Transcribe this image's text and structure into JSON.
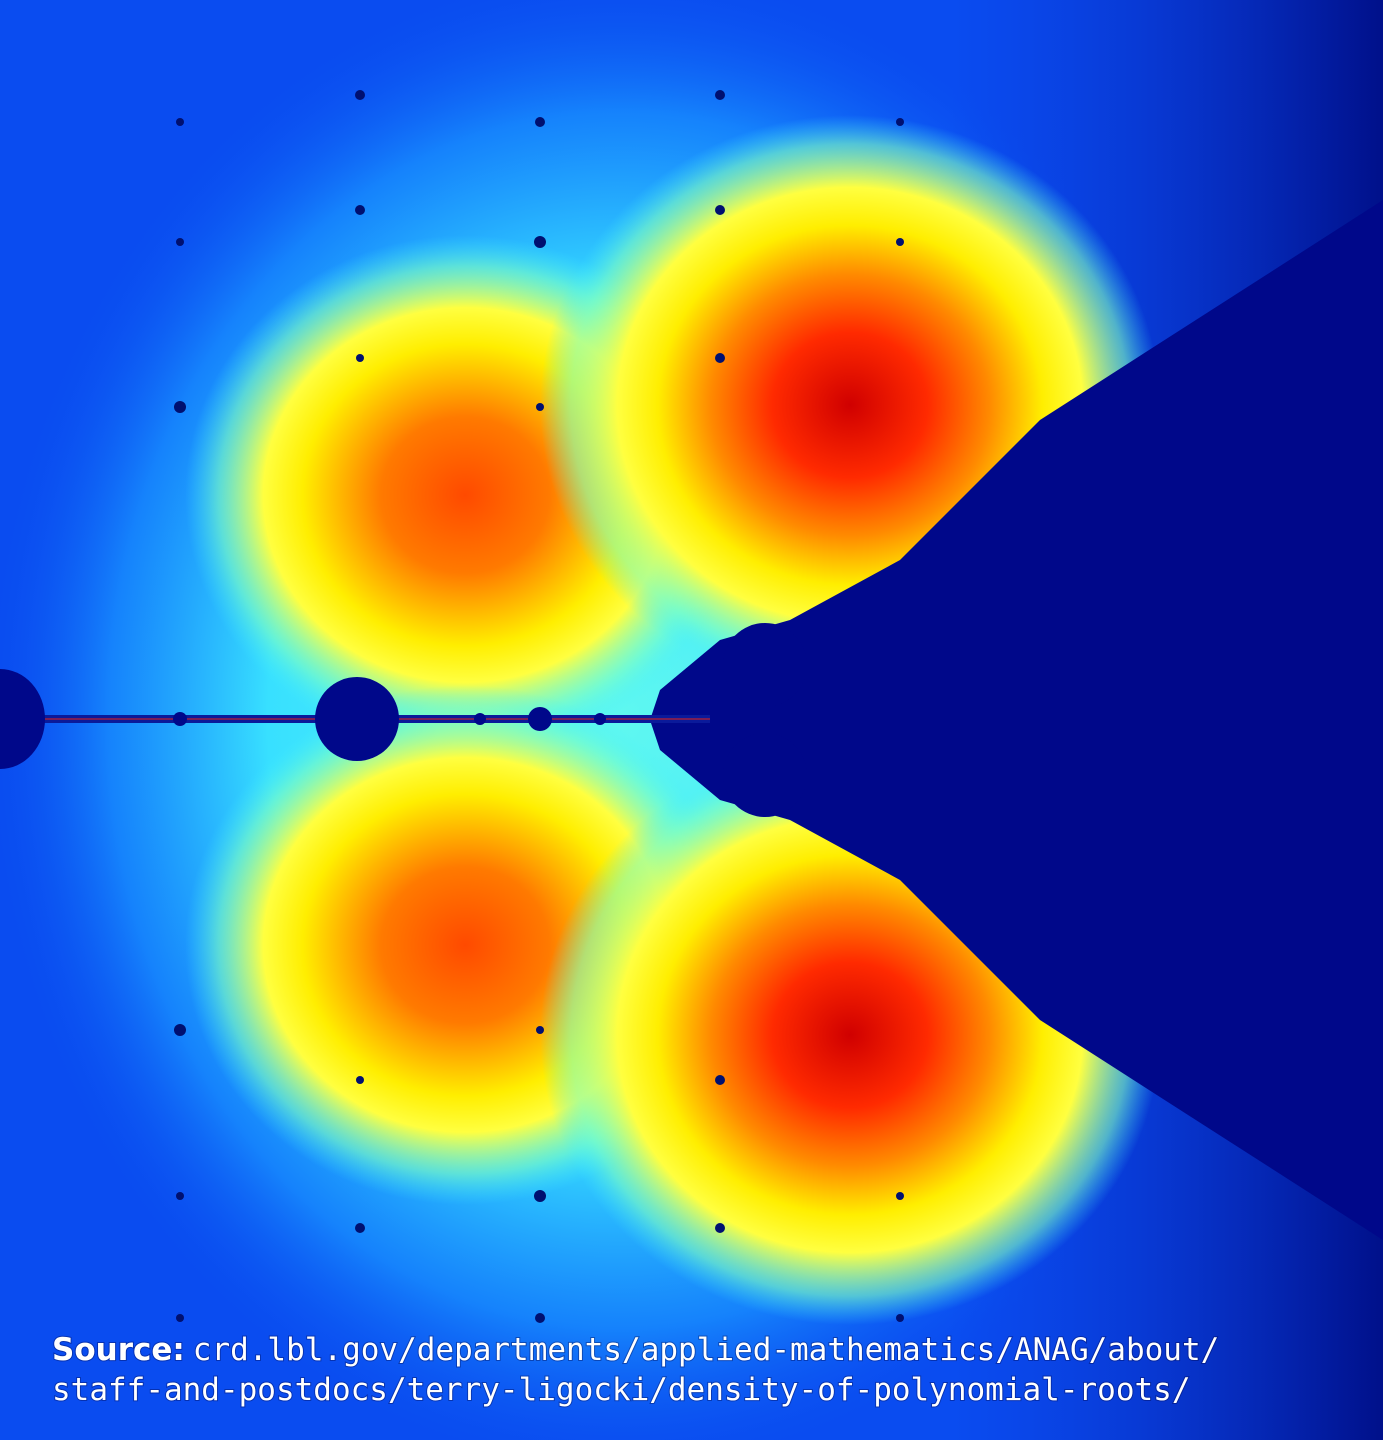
{
  "caption": {
    "label": "Source:",
    "lines": [
      "crd.lbl.gov/departments/applied-mathematics/ANAG/about/",
      "staff-and-postdocs/terry-ligocki/density-of-polynomial-roots/"
    ]
  }
}
